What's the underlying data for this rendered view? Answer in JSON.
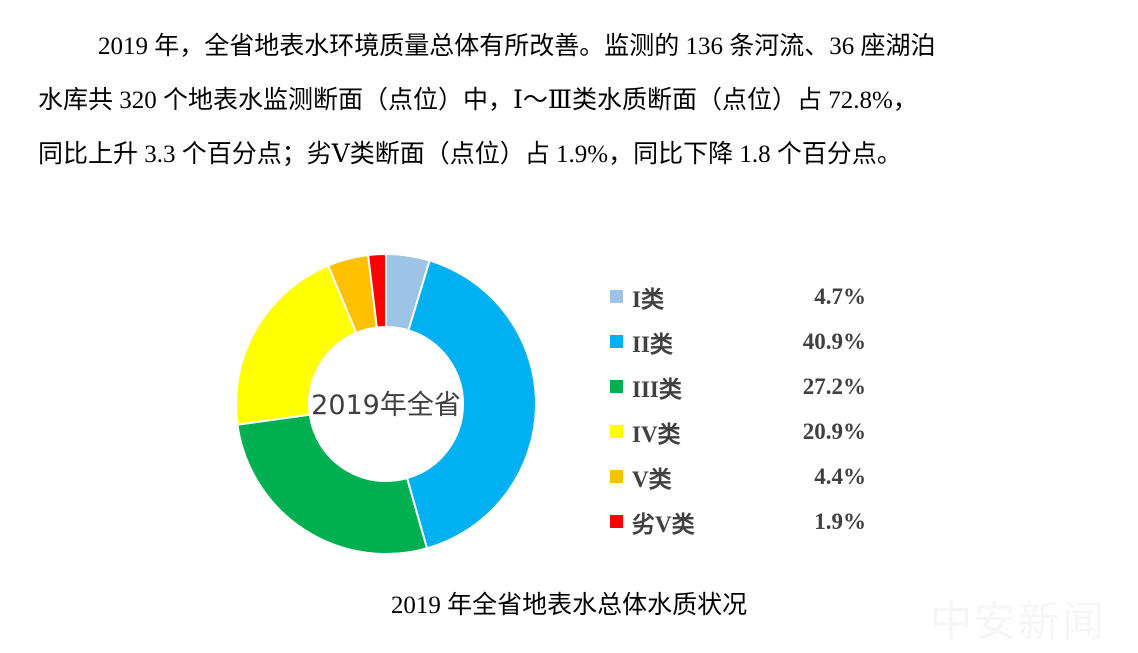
{
  "paragraph": {
    "lines": [
      "2019 年，全省地表水环境质量总体有所改善。监测的 136 条河流、36 座湖泊",
      "水库共 320 个地表水监测断面（点位）中，Ⅰ～Ⅲ类水质断面（点位）占 72.8%，",
      "同比上升 3.3 个百分点；劣Ⅴ类断面（点位）占 1.9%，同比下降 1.8 个百分点。"
    ]
  },
  "chart_data": {
    "type": "pie",
    "donut": true,
    "center_label": "2019年全省",
    "title": "2019 年全省地表水总体水质状况",
    "legend_position": "right",
    "categories": [
      "I类",
      "II类",
      "III类",
      "IV类",
      "V类",
      "劣V类"
    ],
    "values": [
      4.7,
      40.9,
      27.2,
      20.9,
      4.4,
      1.9
    ],
    "value_labels": [
      "4.7%",
      "40.9%",
      "27.2%",
      "20.9%",
      "4.4%",
      "1.9%"
    ],
    "colors": [
      "#9dc3e6",
      "#00b0f0",
      "#00b050",
      "#ffff00",
      "#ffc000",
      "#ff0000"
    ]
  },
  "watermark": "中安新闻"
}
